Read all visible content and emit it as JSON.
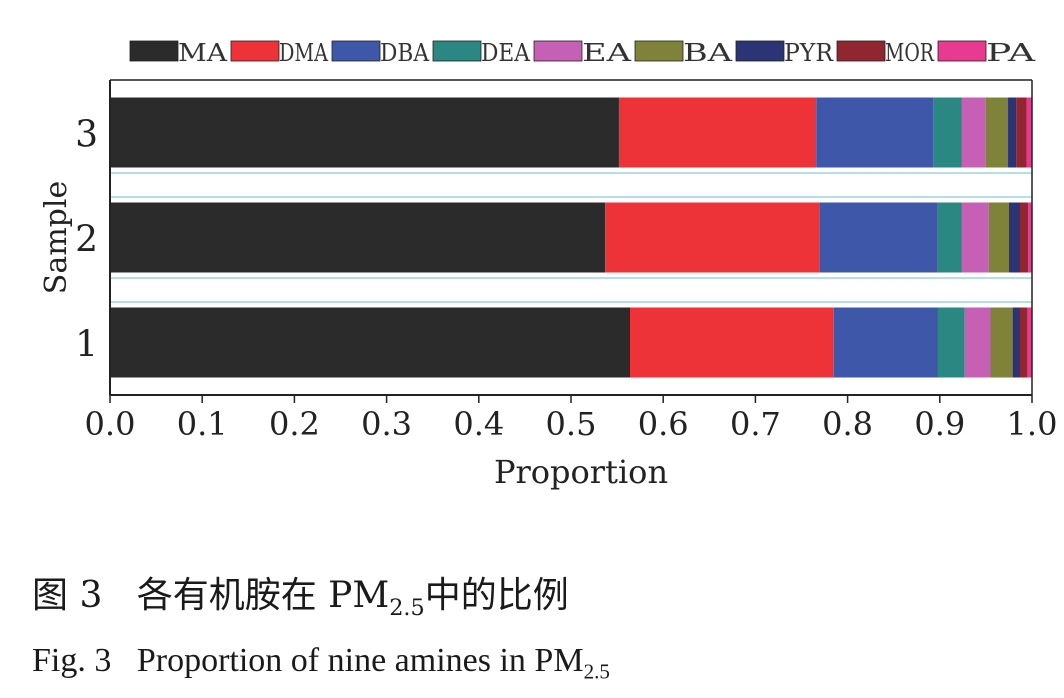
{
  "chart_data": {
    "type": "bar",
    "orientation": "horizontal",
    "stacked": true,
    "xlabel": "Proportion",
    "ylabel": "Sample",
    "xlim": [
      0,
      1.0
    ],
    "xticks": [
      "0.0",
      "0.1",
      "0.2",
      "0.3",
      "0.4",
      "0.5",
      "0.6",
      "0.7",
      "0.8",
      "0.9",
      "1.0"
    ],
    "categories": [
      "1",
      "2",
      "3"
    ],
    "legend_position": "top",
    "series": [
      {
        "name": "MA",
        "color": "#2b2b2b",
        "values": [
          0.564,
          0.537,
          0.552
        ]
      },
      {
        "name": "DMA",
        "color": "#ee3338",
        "values": [
          0.221,
          0.233,
          0.214
        ]
      },
      {
        "name": "DBA",
        "color": "#3f57a9",
        "values": [
          0.113,
          0.127,
          0.127
        ]
      },
      {
        "name": "DEA",
        "color": "#2a8782",
        "values": [
          0.029,
          0.027,
          0.031
        ]
      },
      {
        "name": "EA",
        "color": "#c560b5",
        "values": [
          0.028,
          0.029,
          0.026
        ]
      },
      {
        "name": "BA",
        "color": "#7f8239",
        "values": [
          0.024,
          0.022,
          0.024
        ]
      },
      {
        "name": "PYR",
        "color": "#2b3474",
        "values": [
          0.008,
          0.012,
          0.009
        ]
      },
      {
        "name": "MOR",
        "color": "#8f2630",
        "values": [
          0.008,
          0.009,
          0.011
        ]
      },
      {
        "name": "PA",
        "color": "#e83a8f",
        "values": [
          0.005,
          0.004,
          0.006
        ]
      }
    ]
  },
  "caption": {
    "cn_label": "图 3",
    "cn_text": "各有机胺在 PM",
    "cn_sub": "2.5",
    "cn_tail": "中的比例",
    "en_label": "Fig. 3",
    "en_text": "Proportion of nine amines in PM",
    "en_sub": "2.5"
  }
}
